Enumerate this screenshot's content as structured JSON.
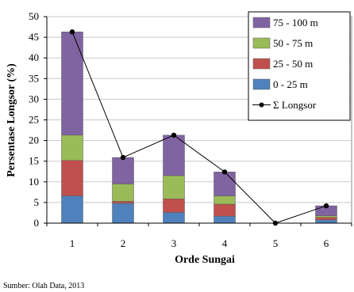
{
  "chart_data": {
    "type": "bar",
    "stacked": true,
    "title": "",
    "xlabel": "Orde Sungai",
    "ylabel": "Persentase Longsor (%)",
    "ylim": [
      0,
      50
    ],
    "yticks": [
      0,
      5,
      10,
      15,
      20,
      25,
      30,
      35,
      40,
      45,
      50
    ],
    "categories": [
      "1",
      "2",
      "3",
      "4",
      "5",
      "6"
    ],
    "grid": true,
    "legend_position": "top-right",
    "series": [
      {
        "name": "0 - 25 m",
        "color": "#4F81BD",
        "values": [
          6.6,
          4.8,
          2.6,
          1.7,
          0,
          0.8
        ]
      },
      {
        "name": "25 - 50 m",
        "color": "#C0504D",
        "values": [
          8.6,
          0.5,
          3.3,
          2.9,
          0,
          0.6
        ]
      },
      {
        "name": "50 - 75 m",
        "color": "#9BBB59",
        "values": [
          6.1,
          4.2,
          5.6,
          2.0,
          0,
          0.4
        ]
      },
      {
        "name": "75 - 100 m",
        "color": "#8064A2",
        "values": [
          25.0,
          6.4,
          9.8,
          5.8,
          0,
          2.4
        ]
      }
    ],
    "line_series": {
      "name": "Σ Longsor",
      "color": "#000000",
      "values": [
        46.3,
        15.9,
        21.3,
        12.4,
        0,
        4.2
      ]
    },
    "legend_order": [
      "75 - 100 m",
      "50 - 75 m",
      "25 - 50 m",
      "0 - 25 m",
      "Σ Longsor"
    ]
  },
  "source_note": "Sumber: Olah Data, 2013"
}
